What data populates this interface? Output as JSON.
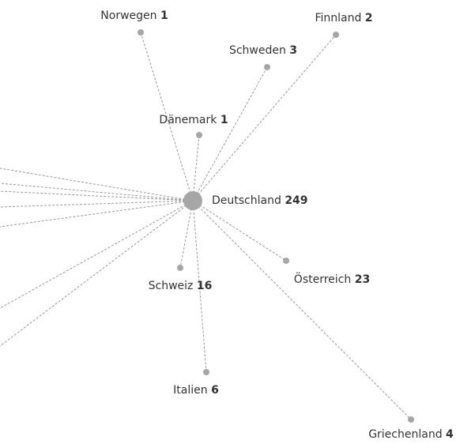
{
  "center": {
    "label": "Deutschland",
    "count": 249
  },
  "nodes": [
    {
      "label": "Norwegen",
      "count": 1
    },
    {
      "label": "Finnland",
      "count": 2
    },
    {
      "label": "Schweden",
      "count": 3
    },
    {
      "label": "Dänemark",
      "count": 1
    },
    {
      "label": "Schweiz",
      "count": 16
    },
    {
      "label": "Österreich",
      "count": 23
    },
    {
      "label": "Italien",
      "count": 6
    },
    {
      "label": "Griechenland",
      "count": 4
    }
  ]
}
